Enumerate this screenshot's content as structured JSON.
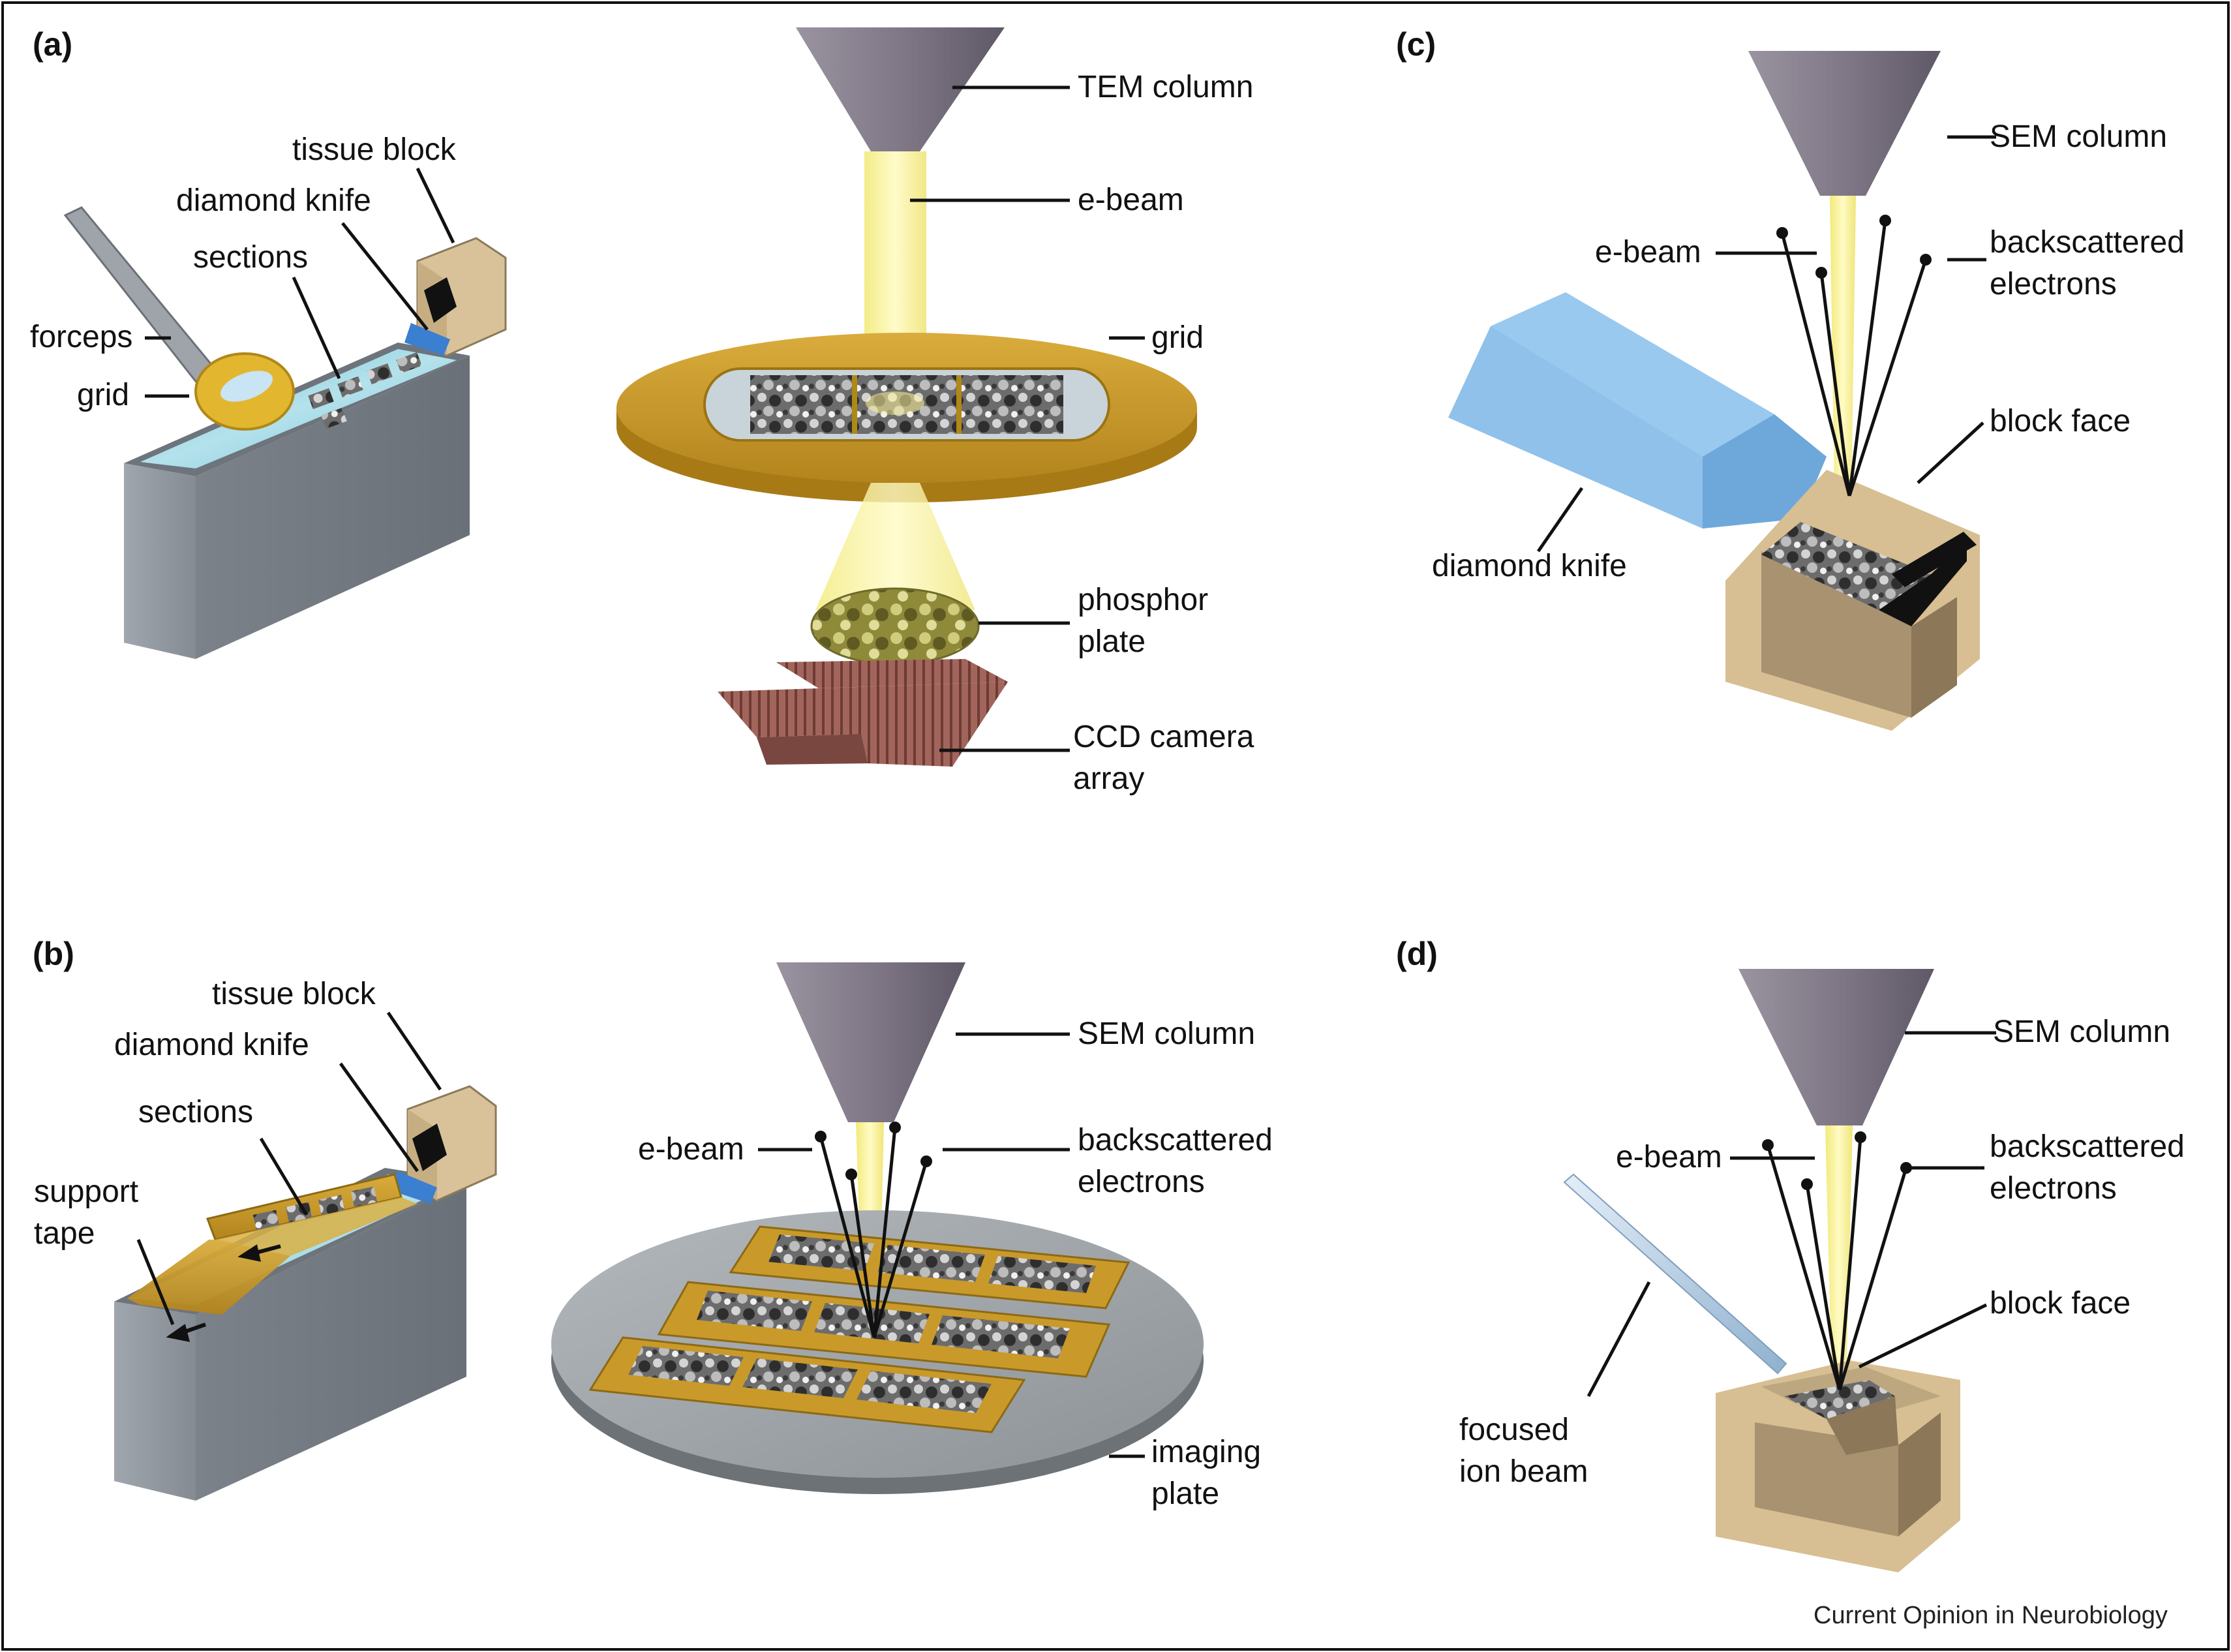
{
  "panels": {
    "a": {
      "tag": "(a)",
      "tissue_block": "tissue block",
      "diamond_knife": "diamond knife",
      "sections": "sections",
      "forceps": "forceps",
      "grid_left": "grid",
      "tem_column": "TEM column",
      "e_beam": "e-beam",
      "grid_right": "grid",
      "phosphor_plate": "phosphor\nplate",
      "ccd_camera_array": "CCD camera\narray"
    },
    "b": {
      "tag": "(b)",
      "tissue_block": "tissue block",
      "diamond_knife": "diamond knife",
      "sections": "sections",
      "support_tape": "support\ntape",
      "sem_column": "SEM column",
      "e_beam": "e-beam",
      "backscattered_electrons": "backscattered\nelectrons",
      "imaging_plate": "imaging\nplate"
    },
    "c": {
      "tag": "(c)",
      "sem_column": "SEM column",
      "e_beam": "e-beam",
      "backscattered_electrons": "backscattered\nelectrons",
      "block_face": "block face",
      "diamond_knife": "diamond knife"
    },
    "d": {
      "tag": "(d)",
      "sem_column": "SEM column",
      "e_beam": "e-beam",
      "backscattered_electrons": "backscattered\nelectrons",
      "block_face": "block face",
      "focused_ion_beam": "focused\nion beam"
    }
  },
  "credit": "Current Opinion in Neurobiology",
  "colors": {
    "column_gray": "#7e7682",
    "beam_yellow": "#fbf59a",
    "grid_gold": "#c99a2a",
    "water_blue": "#8fcde0",
    "trough_gray": "#8e949c",
    "block_tan": "#d9c29a",
    "knife_blue": "#7bb6e6",
    "ccd_brown": "#9a5d55"
  }
}
